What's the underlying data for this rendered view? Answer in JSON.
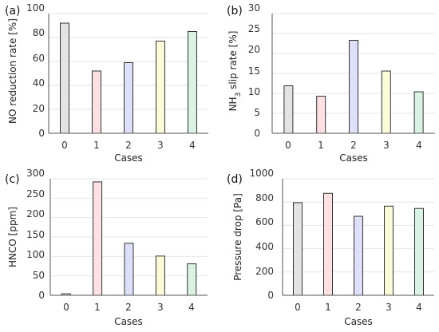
{
  "chart_data": [
    {
      "type": "bar",
      "panel_label": "(a)",
      "categories": [
        "0",
        "1",
        "2",
        "3",
        "4"
      ],
      "values": [
        92,
        52,
        59,
        77,
        85
      ],
      "xlabel": "Cases",
      "ylabel": "NO reduction rate [%]",
      "ylim": [
        0,
        100
      ],
      "yticks": [
        "0",
        "20",
        "40",
        "60",
        "80",
        "100"
      ],
      "grid": true
    },
    {
      "type": "bar",
      "panel_label": "(b)",
      "categories": [
        "0",
        "1",
        "2",
        "3",
        "4"
      ],
      "values": [
        11.9,
        9.3,
        23.3,
        15.6,
        10.4
      ],
      "xlabel": "Cases",
      "ylabel_parts": [
        "NH",
        "3",
        " slip rate [%]"
      ],
      "ylim": [
        0,
        30
      ],
      "yticks": [
        "0",
        "5",
        "10",
        "15",
        "20",
        "25",
        "30"
      ],
      "grid": true
    },
    {
      "type": "bar",
      "panel_label": "(c)",
      "categories": [
        "0",
        "1",
        "2",
        "3",
        "4"
      ],
      "values": [
        4,
        292,
        134,
        101,
        81
      ],
      "xlabel": "Cases",
      "ylabel": "HNCO [ppm]",
      "ylim": [
        0,
        300
      ],
      "yticks": [
        "0",
        "50",
        "100",
        "150",
        "200",
        "250",
        "300"
      ],
      "grid": true
    },
    {
      "type": "bar",
      "panel_label": "(d)",
      "categories": [
        "0",
        "1",
        "2",
        "3",
        "4"
      ],
      "values": [
        795,
        875,
        678,
        765,
        745
      ],
      "xlabel": "Cases",
      "ylabel": "Pressure drop [Pa]",
      "ylim": [
        0,
        1000
      ],
      "yticks": [
        "0",
        "200",
        "400",
        "600",
        "800",
        "1000"
      ],
      "grid": true
    }
  ],
  "bar_colors": [
    "#e3e3e3",
    "#fde0e3",
    "#dedff8",
    "#fbfbd9",
    "#d9f2e4"
  ],
  "bar_edge_color": "#333333",
  "grid_color": "#e6e6e6"
}
